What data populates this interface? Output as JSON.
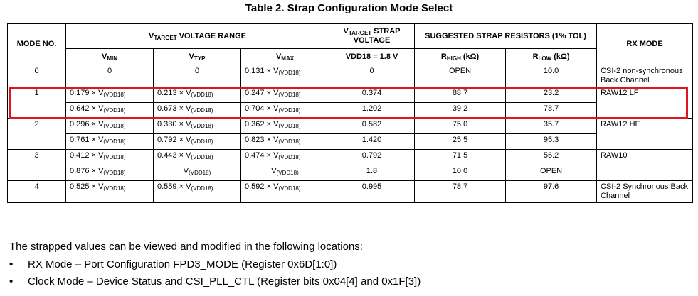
{
  "title": "Table 2.  Strap Configuration Mode Select",
  "table": {
    "header": {
      "mode": "MODE NO.",
      "range": [
        {
          "text": "V"
        },
        {
          "sub": "TARGET"
        },
        {
          "text": " VOLTAGE RANGE"
        }
      ],
      "strap": [
        {
          "text": "V"
        },
        {
          "sub": "TARGET"
        },
        {
          "text": " STRAP VOLTAGE"
        }
      ],
      "resistors": "SUGGESTED STRAP RESISTORS (1% TOL)",
      "rx": "RX MODE",
      "vmin": [
        {
          "text": "V"
        },
        {
          "sub": "MIN"
        }
      ],
      "vtyp": [
        {
          "text": "V"
        },
        {
          "sub": "TYP"
        }
      ],
      "vmax": [
        {
          "text": "V"
        },
        {
          "sub": "MAX"
        }
      ],
      "vdd": "VDD18 = 1.8 V",
      "rhigh": [
        {
          "text": "R"
        },
        {
          "sub": "HIGH"
        },
        {
          "text": " (kΩ)"
        }
      ],
      "rlow": [
        {
          "text": "R"
        },
        {
          "sub": "LOW"
        },
        {
          "text": " (kΩ)"
        }
      ]
    },
    "rows": [
      {
        "mode": "0",
        "vmin": "0",
        "vtyp": "0",
        "vmax": [
          {
            "text": "0.131 × V"
          },
          {
            "sub": "(VDD18)"
          }
        ],
        "strap": "0",
        "rhigh": "OPEN",
        "rlow": "10.0",
        "rx": "CSI-2 non-synchronous Back Channel"
      },
      {
        "mode": "1",
        "vmin": [
          {
            "text": "0.179 × V"
          },
          {
            "sub": "(VDD18)"
          }
        ],
        "vtyp": [
          {
            "text": "0.213 × V"
          },
          {
            "sub": "(VDD18)"
          }
        ],
        "vmax": [
          {
            "text": "0.247 × V"
          },
          {
            "sub": "(VDD18)"
          }
        ],
        "strap": "0.374",
        "rhigh": "88.7",
        "rlow": "23.2",
        "rx": "RAW12 LF"
      },
      {
        "vmin": [
          {
            "text": "0.642 × V"
          },
          {
            "sub": "(VDD18)"
          }
        ],
        "vtyp": [
          {
            "text": "0.673 × V"
          },
          {
            "sub": "(VDD18)"
          }
        ],
        "vmax": [
          {
            "text": "0.704 × V"
          },
          {
            "sub": "(VDD18)"
          }
        ],
        "strap": "1.202",
        "rhigh": "39.2",
        "rlow": "78.7"
      },
      {
        "mode": "2",
        "vmin": [
          {
            "text": "0.296 × V"
          },
          {
            "sub": "(VDD18)"
          }
        ],
        "vtyp": [
          {
            "text": "0.330 × V"
          },
          {
            "sub": "(VDD18)"
          }
        ],
        "vmax": [
          {
            "text": "0.362 × V"
          },
          {
            "sub": "(VDD18)"
          }
        ],
        "strap": "0.582",
        "rhigh": "75.0",
        "rlow": "35.7",
        "rx": "RAW12 HF"
      },
      {
        "vmin": [
          {
            "text": "0.761 × V"
          },
          {
            "sub": "(VDD18)"
          }
        ],
        "vtyp": [
          {
            "text": "0.792 × V"
          },
          {
            "sub": "(VDD18)"
          }
        ],
        "vmax": [
          {
            "text": "0.823 × V"
          },
          {
            "sub": "(VDD18)"
          }
        ],
        "strap": "1.420",
        "rhigh": "25.5",
        "rlow": "95.3"
      },
      {
        "mode": "3",
        "vmin": [
          {
            "text": "0.412 × V"
          },
          {
            "sub": "(VDD18)"
          }
        ],
        "vtyp": [
          {
            "text": "0.443 × V"
          },
          {
            "sub": "(VDD18)"
          }
        ],
        "vmax": [
          {
            "text": "0.474 × V"
          },
          {
            "sub": "(VDD18)"
          }
        ],
        "strap": "0.792",
        "rhigh": "71.5",
        "rlow": "56.2",
        "rx": "RAW10"
      },
      {
        "vmin": [
          {
            "text": "0.876 × V"
          },
          {
            "sub": "(VDD18)"
          }
        ],
        "vtyp": [
          {
            "text": "V"
          },
          {
            "sub": "(VDD18)"
          }
        ],
        "vmax": [
          {
            "text": "V"
          },
          {
            "sub": "(VDD18)"
          }
        ],
        "strap": "1.8",
        "rhigh": "10.0",
        "rlow": "OPEN"
      },
      {
        "mode": "4",
        "vmin": [
          {
            "text": "0.525 × V"
          },
          {
            "sub": "(VDD18)"
          }
        ],
        "vtyp": [
          {
            "text": "0.559 × V"
          },
          {
            "sub": "(VDD18)"
          }
        ],
        "vmax": [
          {
            "text": "0.592 × V"
          },
          {
            "sub": "(VDD18)"
          }
        ],
        "strap": "0.995",
        "rhigh": "78.7",
        "rlow": "97.6",
        "rx": "CSI-2 Synchronous Back Channel"
      }
    ]
  },
  "note": {
    "intro": "The strapped values can be viewed and modified in the following locations:",
    "bullets": [
      "RX Mode – Port Configuration FPD3_MODE (Register 0x6D[1:0])",
      "Clock Mode – Device Status and CSI_PLL_CTL (Register bits 0x04[4] and 0x1F[3])"
    ]
  }
}
